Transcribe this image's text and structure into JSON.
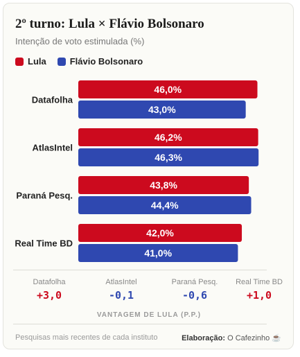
{
  "header": {
    "title": "2º turno: Lula × Flávio Bolsonaro",
    "subtitle": "Intenção de voto estimulada (%)"
  },
  "legend": [
    {
      "label": "Lula",
      "color": "#cc0a1e"
    },
    {
      "label": "Flávio Bolsonaro",
      "color": "#2f48b0"
    }
  ],
  "chart_data": {
    "type": "bar",
    "orientation": "horizontal",
    "title": "2º turno: Lula × Flávio Bolsonaro",
    "subtitle": "Intenção de voto estimulada (%)",
    "categories": [
      "Datafolha",
      "AtlasIntel",
      "Paraná Pesq.",
      "Real Time BD"
    ],
    "series": [
      {
        "name": "Lula",
        "color": "#cc0a1e",
        "values": [
          46.0,
          46.2,
          43.8,
          42.0
        ],
        "labels": [
          "46,0%",
          "46,2%",
          "43,8%",
          "42,0%"
        ]
      },
      {
        "name": "Flávio Bolsonaro",
        "color": "#2f48b0",
        "values": [
          43.0,
          46.3,
          44.4,
          41.0
        ],
        "labels": [
          "43,0%",
          "46,3%",
          "44,4%",
          "41,0%"
        ]
      }
    ],
    "grid": false,
    "legend_position": "top-left"
  },
  "advantage": {
    "caption": "VANTAGEM DE LULA (P.P.)",
    "items": [
      {
        "label": "Datafolha",
        "value": "+3,0",
        "color": "#cc0a1e"
      },
      {
        "label": "AtlasIntel",
        "value": "-0,1",
        "color": "#2f48b0"
      },
      {
        "label": "Paraná Pesq.",
        "value": "-0,6",
        "color": "#2f48b0"
      },
      {
        "label": "Real Time BD",
        "value": "+1,0",
        "color": "#cc0a1e"
      }
    ]
  },
  "footer": {
    "note": "Pesquisas mais recentes de cada instituto",
    "credit_label": "Elaboração:",
    "credit_name": "O Cafezinho ☕"
  }
}
